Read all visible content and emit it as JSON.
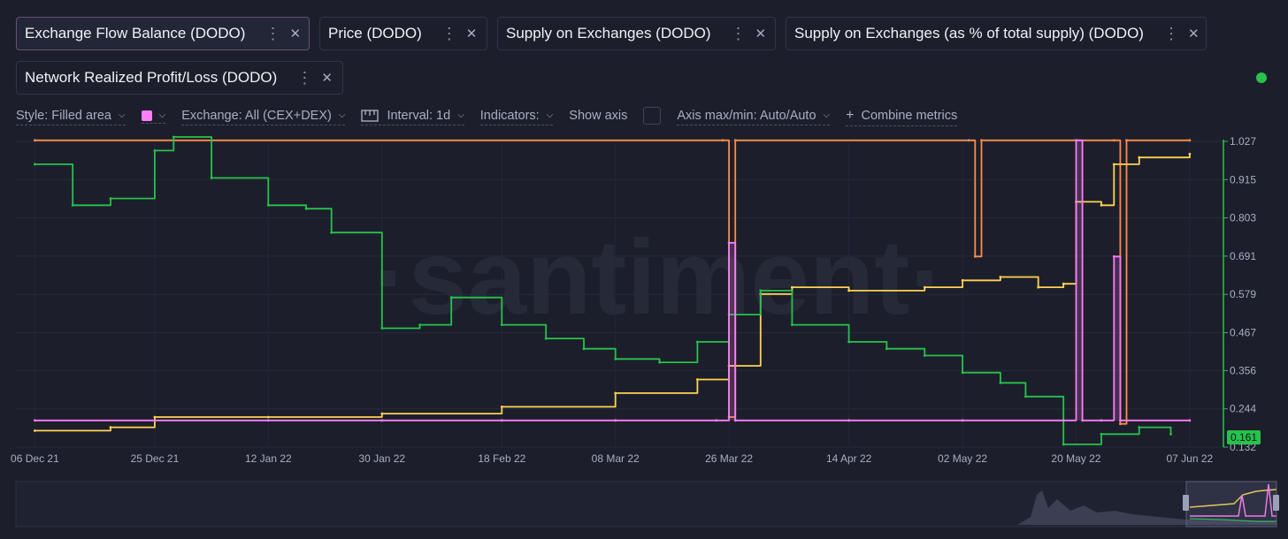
{
  "metrics": [
    {
      "label": "Exchange Flow Balance (DODO)",
      "color": "#ff7df7",
      "active": true
    },
    {
      "label": "Price (DODO)",
      "color": "#27c24c",
      "active": false
    },
    {
      "label": "Supply on Exchanges (DODO)",
      "color": "#ff5b5b",
      "active": false
    },
    {
      "label": "Supply on Exchanges (as % of total supply) (DODO)",
      "color": "#ffd351",
      "active": false
    },
    {
      "label": "Network Realized Profit/Loss (DODO)",
      "color": "#ff8a4a",
      "active": false
    }
  ],
  "icons": {
    "kebab": "⋮",
    "close": "✕",
    "chevron": "chevron-down-icon",
    "interval": "ruler-icon",
    "combine": "plus-icon"
  },
  "toolbar": {
    "style": "Style: Filled area",
    "exchange": "Exchange: All (CEX+DEX)",
    "interval": "Interval: 1d",
    "indicators": "Indicators:",
    "show_axis": "Show axis",
    "axis": "Axis max/min: Auto/Auto",
    "combine": "Combine metrics"
  },
  "watermark": "·santiment·",
  "chart_data": {
    "type": "line",
    "x_labels": [
      "06 Dec 21",
      "25 Dec 21",
      "12 Jan 22",
      "30 Jan 22",
      "18 Feb 22",
      "08 Mar 22",
      "26 Mar 22",
      "14 Apr 22",
      "02 May 22",
      "20 May 22",
      "07 Jun 22"
    ],
    "y_ticks": [
      "1.027",
      "0.915",
      "0.803",
      "0.691",
      "0.579",
      "0.467",
      "0.356",
      "0.244",
      "0.132"
    ],
    "ylim": [
      0.132,
      1.027
    ],
    "price_label": "0.161",
    "series": [
      {
        "name": "Price (DODO)",
        "color": "#27c24c",
        "x": [
          "06 Dec 21",
          "12 Dec 21",
          "18 Dec 21",
          "25 Dec 21",
          "28 Dec 21",
          "03 Jan 22",
          "12 Jan 22",
          "18 Jan 22",
          "22 Jan 22",
          "30 Jan 22",
          "05 Feb 22",
          "10 Feb 22",
          "18 Feb 22",
          "25 Feb 22",
          "03 Mar 22",
          "08 Mar 22",
          "15 Mar 22",
          "21 Mar 22",
          "26 Mar 22",
          "31 Mar 22",
          "05 Apr 22",
          "14 Apr 22",
          "20 Apr 22",
          "26 Apr 22",
          "02 May 22",
          "08 May 22",
          "12 May 22",
          "18 May 22",
          "24 May 22",
          "30 May 22",
          "04 Jun 22"
        ],
        "values": [
          0.96,
          0.84,
          0.86,
          1.0,
          1.04,
          0.92,
          0.84,
          0.83,
          0.76,
          0.48,
          0.49,
          0.57,
          0.49,
          0.45,
          0.42,
          0.39,
          0.38,
          0.44,
          0.52,
          0.59,
          0.49,
          0.44,
          0.42,
          0.4,
          0.35,
          0.32,
          0.28,
          0.14,
          0.17,
          0.19,
          0.17
        ]
      },
      {
        "name": "Supply on Exchanges (as % of total supply) (DODO)",
        "color": "#ffd351",
        "x": [
          "06 Dec 21",
          "18 Dec 21",
          "25 Dec 21",
          "12 Jan 22",
          "30 Jan 22",
          "18 Feb 22",
          "08 Mar 22",
          "21 Mar 22",
          "26 Mar 22",
          "31 Mar 22",
          "05 Apr 22",
          "14 Apr 22",
          "26 Apr 22",
          "02 May 22",
          "08 May 22",
          "14 May 22",
          "18 May 22",
          "20 May 22",
          "24 May 22",
          "26 May 22",
          "30 May 22",
          "07 Jun 22"
        ],
        "values": [
          0.18,
          0.19,
          0.22,
          0.22,
          0.23,
          0.25,
          0.29,
          0.33,
          0.37,
          0.58,
          0.6,
          0.59,
          0.6,
          0.62,
          0.63,
          0.6,
          0.61,
          0.85,
          0.84,
          0.96,
          0.98,
          0.99
        ]
      },
      {
        "name": "Exchange Flow Balance (DODO)",
        "color": "#ff7df7",
        "x": [
          "06 Dec 21",
          "25 Dec 21",
          "12 Jan 22",
          "30 Jan 22",
          "18 Feb 22",
          "08 Mar 22",
          "24 Mar 22",
          "26 Mar 22",
          "27 Mar 22",
          "14 Apr 22",
          "02 May 22",
          "18 May 22",
          "20 May 22",
          "21 May 22",
          "24 May 22",
          "26 May 22",
          "27 May 22",
          "07 Jun 22"
        ],
        "values": [
          0.21,
          0.21,
          0.21,
          0.21,
          0.21,
          0.21,
          0.21,
          0.73,
          0.21,
          0.21,
          0.21,
          0.21,
          1.03,
          0.21,
          0.21,
          0.69,
          0.21,
          0.21
        ]
      },
      {
        "name": "Network Realized Profit/Loss (DODO)",
        "color": "#ff8a4a",
        "x": [
          "06 Dec 21",
          "25 Mar 22",
          "26 Mar 22",
          "27 Mar 22",
          "03 May 22",
          "04 May 22",
          "05 May 22",
          "26 May 22",
          "27 May 22",
          "28 May 22",
          "07 Jun 22"
        ],
        "values": [
          1.03,
          1.03,
          0.22,
          1.03,
          1.03,
          0.69,
          1.03,
          1.03,
          0.2,
          1.03,
          1.03
        ]
      }
    ]
  }
}
